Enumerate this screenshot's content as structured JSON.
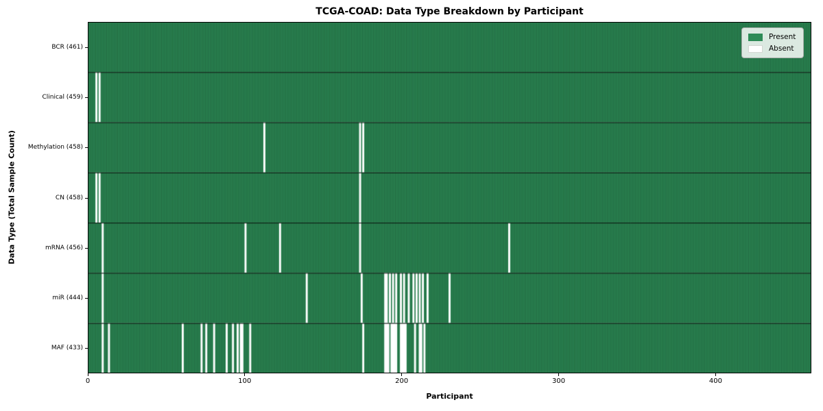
{
  "chart_data": {
    "type": "heatmap",
    "title": "TCGA-COAD: Data Type Breakdown by Participant",
    "xlabel": "Participant",
    "ylabel": "Data Type (Total Sample Count)",
    "n_participants": 461,
    "xlim": [
      0,
      461
    ],
    "x_ticks": [
      0,
      100,
      200,
      300,
      400
    ],
    "grid": false,
    "legend": {
      "position": "upper right",
      "entries": [
        {
          "label": "Present",
          "color": "#2e8b57"
        },
        {
          "label": "Absent",
          "color": "#ffffff"
        }
      ]
    },
    "colors": {
      "present": "#2e8b57",
      "absent": "#ffffff",
      "bar_edge": "rgba(12,52,30,0.6)",
      "row_separator": "#000000",
      "border": "#000000"
    },
    "rows": [
      {
        "name": "BCR",
        "label": "BCR (461)",
        "present_count": 461,
        "absent_participants": []
      },
      {
        "name": "Clinical",
        "label": "Clinical (459)",
        "present_count": 459,
        "absent_participants": [
          5,
          7
        ]
      },
      {
        "name": "Methylation",
        "label": "Methylation (458)",
        "present_count": 458,
        "absent_participants": [
          112,
          173,
          175
        ]
      },
      {
        "name": "CN",
        "label": "CN (458)",
        "present_count": 458,
        "absent_participants": [
          5,
          7,
          173
        ]
      },
      {
        "name": "mRNA",
        "label": "mRNA (456)",
        "present_count": 456,
        "absent_participants": [
          9,
          100,
          122,
          173,
          268
        ]
      },
      {
        "name": "miR",
        "label": "miR (444)",
        "present_count": 444,
        "absent_participants": [
          9,
          139,
          174,
          189,
          190,
          192,
          194,
          196,
          199,
          201,
          204,
          207,
          209,
          211,
          213,
          216,
          230
        ]
      },
      {
        "name": "MAF",
        "label": "MAF (433)",
        "present_count": 433,
        "absent_participants": [
          9,
          13,
          60,
          72,
          75,
          80,
          88,
          92,
          95,
          97,
          98,
          103,
          175,
          189,
          190,
          191,
          193,
          194,
          195,
          196,
          199,
          200,
          201,
          202,
          208,
          211,
          212,
          214
        ]
      }
    ]
  }
}
